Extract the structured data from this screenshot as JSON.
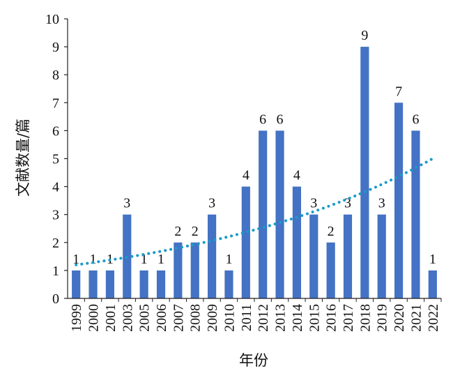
{
  "chart_data": {
    "type": "bar",
    "title": "",
    "xlabel": "年份",
    "ylabel": "文献数量/篇",
    "ylim": [
      0,
      10
    ],
    "yticks": [
      0,
      1,
      2,
      3,
      4,
      5,
      6,
      7,
      8,
      9,
      10
    ],
    "categories": [
      "1999",
      "2000",
      "2001",
      "2003",
      "2005",
      "2006",
      "2007",
      "2008",
      "2009",
      "2010",
      "2011",
      "2012",
      "2013",
      "2014",
      "2015",
      "2016",
      "2017",
      "2018",
      "2019",
      "2020",
      "2021",
      "2022"
    ],
    "values": [
      1,
      1,
      1,
      3,
      1,
      1,
      2,
      2,
      3,
      1,
      4,
      6,
      6,
      4,
      3,
      2,
      3,
      9,
      3,
      7,
      6,
      1
    ],
    "bar_color": "#4472c4",
    "trendline": {
      "type": "exponential",
      "style": "dotted",
      "color": "#1a9bc9",
      "start_value": 1.2,
      "end_value": 5.0
    },
    "grid": false,
    "legend": "none"
  }
}
